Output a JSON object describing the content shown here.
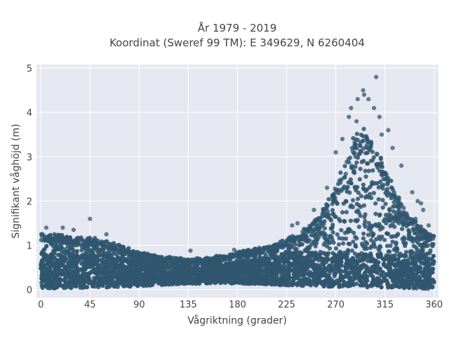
{
  "chart_data": {
    "type": "scatter",
    "title_lines": [
      "År 1979 - 2019",
      "Koordinat (Sweref 99 TM): E 349629, N 6260404"
    ],
    "xlabel": "Vågriktning (grader)",
    "ylabel": "Signifikant våghöjd (m)",
    "xlim": [
      -4,
      364
    ],
    "ylim": [
      -0.18,
      5.08
    ],
    "xticks": [
      0,
      45,
      90,
      135,
      180,
      225,
      270,
      315,
      360
    ],
    "yticks": [
      0,
      1,
      2,
      3,
      4,
      5
    ],
    "grid": true,
    "marker_color": "#31566f",
    "background_color": "#e5e8f0",
    "envelope": {
      "x": [
        0,
        10,
        20,
        30,
        45,
        60,
        75,
        90,
        105,
        120,
        135,
        150,
        165,
        180,
        195,
        210,
        225,
        240,
        255,
        265,
        275,
        285,
        295,
        305,
        315,
        325,
        335,
        345,
        355,
        360
      ],
      "ymin": [
        0.03,
        0.03,
        0.04,
        0.04,
        0.05,
        0.05,
        0.06,
        0.08,
        0.1,
        0.12,
        0.13,
        0.14,
        0.14,
        0.14,
        0.13,
        0.12,
        0.1,
        0.09,
        0.08,
        0.07,
        0.06,
        0.06,
        0.05,
        0.05,
        0.04,
        0.04,
        0.03,
        0.03,
        0.02,
        0.02
      ],
      "ymax": [
        1.3,
        1.25,
        1.25,
        1.2,
        1.2,
        1.1,
        1.0,
        0.85,
        0.78,
        0.75,
        0.7,
        0.72,
        0.78,
        0.85,
        0.92,
        1.0,
        1.15,
        1.35,
        1.7,
        2.1,
        2.7,
        3.4,
        3.7,
        3.3,
        2.8,
        2.2,
        1.8,
        1.5,
        1.3,
        1.3
      ]
    },
    "outliers": [
      {
        "x": 45,
        "y": 1.6
      },
      {
        "x": 20,
        "y": 1.4
      },
      {
        "x": 30,
        "y": 1.35
      },
      {
        "x": 60,
        "y": 1.25
      },
      {
        "x": 137,
        "y": 0.88
      },
      {
        "x": 177,
        "y": 0.9
      },
      {
        "x": 200,
        "y": 0.95
      },
      {
        "x": 230,
        "y": 1.45
      },
      {
        "x": 235,
        "y": 1.5
      },
      {
        "x": 250,
        "y": 1.8
      },
      {
        "x": 262,
        "y": 2.3
      },
      {
        "x": 270,
        "y": 3.1
      },
      {
        "x": 276,
        "y": 3.4
      },
      {
        "x": 290,
        "y": 4.3
      },
      {
        "x": 295,
        "y": 4.5
      },
      {
        "x": 296,
        "y": 4.4
      },
      {
        "x": 300,
        "y": 4.3
      },
      {
        "x": 305,
        "y": 4.1
      },
      {
        "x": 307,
        "y": 4.8
      },
      {
        "x": 310,
        "y": 3.9
      },
      {
        "x": 318,
        "y": 3.6
      },
      {
        "x": 322,
        "y": 3.2
      },
      {
        "x": 330,
        "y": 2.8
      },
      {
        "x": 340,
        "y": 2.2
      },
      {
        "x": 345,
        "y": 2.0
      },
      {
        "x": 348,
        "y": 1.95
      },
      {
        "x": 350,
        "y": 1.8
      },
      {
        "x": 343,
        "y": 1.6
      },
      {
        "x": 355,
        "y": 1.45
      },
      {
        "x": 5,
        "y": 1.4
      },
      {
        "x": 282,
        "y": 3.9
      },
      {
        "x": 284,
        "y": 4.1
      },
      {
        "x": 289,
        "y": 3.8
      },
      {
        "x": 312,
        "y": 3.5
      }
    ]
  }
}
